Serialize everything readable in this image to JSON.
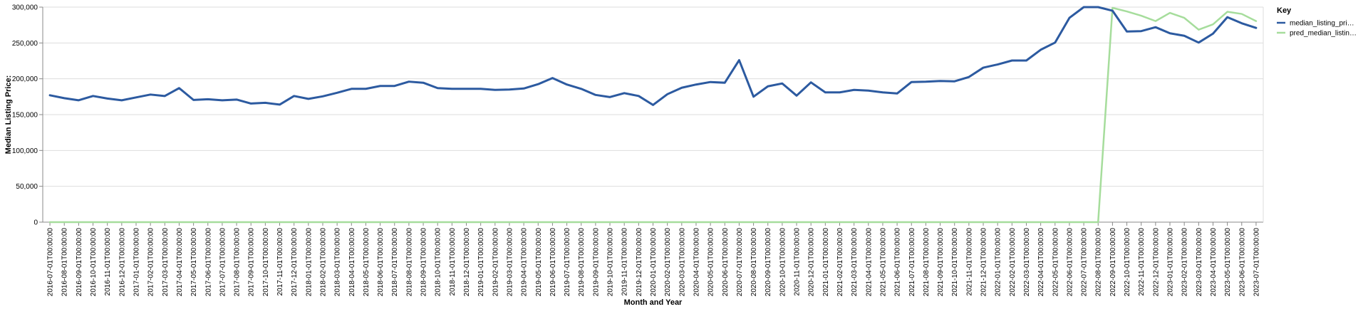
{
  "chart_data": {
    "type": "line",
    "xlabel": "Month and Year",
    "ylabel": "Median Listing Price:",
    "ylim": [
      0,
      300000
    ],
    "yticks": [
      0,
      50000,
      100000,
      150000,
      200000,
      250000,
      300000
    ],
    "ytick_labels": [
      "0",
      "50,000",
      "100,000",
      "150,000",
      "200,000",
      "250,000",
      "300,000"
    ],
    "grid": true,
    "legend": {
      "title": "Key",
      "placement": "right"
    },
    "x": [
      "2016-07-01T00:00:00",
      "2016-08-01T00:00:00",
      "2016-09-01T00:00:00",
      "2016-10-01T00:00:00",
      "2016-11-01T00:00:00",
      "2016-12-01T00:00:00",
      "2017-01-01T00:00:00",
      "2017-02-01T00:00:00",
      "2017-03-01T00:00:00",
      "2017-04-01T00:00:00",
      "2017-05-01T00:00:00",
      "2017-06-01T00:00:00",
      "2017-07-01T00:00:00",
      "2017-08-01T00:00:00",
      "2017-09-01T00:00:00",
      "2017-10-01T00:00:00",
      "2017-11-01T00:00:00",
      "2017-12-01T00:00:00",
      "2018-01-01T00:00:00",
      "2018-02-01T00:00:00",
      "2018-03-01T00:00:00",
      "2018-04-01T00:00:00",
      "2018-05-01T00:00:00",
      "2018-06-01T00:00:00",
      "2018-07-01T00:00:00",
      "2018-08-01T00:00:00",
      "2018-09-01T00:00:00",
      "2018-10-01T00:00:00",
      "2018-11-01T00:00:00",
      "2018-12-01T00:00:00",
      "2019-01-01T00:00:00",
      "2019-02-01T00:00:00",
      "2019-03-01T00:00:00",
      "2019-04-01T00:00:00",
      "2019-05-01T00:00:00",
      "2019-06-01T00:00:00",
      "2019-07-01T00:00:00",
      "2019-08-01T00:00:00",
      "2019-09-01T00:00:00",
      "2019-10-01T00:00:00",
      "2019-11-01T00:00:00",
      "2019-12-01T00:00:00",
      "2020-01-01T00:00:00",
      "2020-02-01T00:00:00",
      "2020-03-01T00:00:00",
      "2020-04-01T00:00:00",
      "2020-05-01T00:00:00",
      "2020-06-01T00:00:00",
      "2020-07-01T00:00:00",
      "2020-08-01T00:00:00",
      "2020-09-01T00:00:00",
      "2020-10-01T00:00:00",
      "2020-11-01T00:00:00",
      "2020-12-01T00:00:00",
      "2021-01-01T00:00:00",
      "2021-02-01T00:00:00",
      "2021-03-01T00:00:00",
      "2021-04-01T00:00:00",
      "2021-05-01T00:00:00",
      "2021-06-01T00:00:00",
      "2021-07-01T00:00:00",
      "2021-08-01T00:00:00",
      "2021-09-01T00:00:00",
      "2021-10-01T00:00:00",
      "2021-11-01T00:00:00",
      "2021-12-01T00:00:00",
      "2022-01-01T00:00:00",
      "2022-02-01T00:00:00",
      "2022-03-01T00:00:00",
      "2022-04-01T00:00:00",
      "2022-05-01T00:00:00",
      "2022-06-01T00:00:00",
      "2022-07-01T00:00:00",
      "2022-08-01T00:00:00",
      "2022-09-01T00:00:00",
      "2022-10-01T00:00:00",
      "2022-11-01T00:00:00",
      "2022-12-01T00:00:00",
      "2023-01-01T00:00:00",
      "2023-02-01T00:00:00",
      "2023-03-01T00:00:00",
      "2023-04-01T00:00:00",
      "2023-05-01T00:00:00",
      "2023-06-01T00:00:00",
      "2023-07-01T00:00:00"
    ],
    "series": [
      {
        "name": "median_listing_pri…",
        "color": "#2c5aa0",
        "values": [
          177000,
          173000,
          170000,
          176000,
          172500,
          170000,
          174000,
          178000,
          176000,
          187000,
          170500,
          171500,
          170000,
          171000,
          165500,
          166500,
          164000,
          176000,
          172000,
          175500,
          180500,
          186000,
          186000,
          190000,
          190000,
          196000,
          194500,
          187000,
          186000,
          186000,
          186000,
          184500,
          185000,
          186500,
          192500,
          201000,
          192000,
          186000,
          177500,
          174500,
          180000,
          176000,
          163500,
          178500,
          187500,
          192000,
          195500,
          194500,
          226000,
          175000,
          189500,
          193500,
          176500,
          195000,
          181000,
          181000,
          184500,
          183500,
          181000,
          179500,
          195500,
          196000,
          197000,
          196500,
          202500,
          215500,
          220000,
          225500,
          225500,
          240500,
          250500,
          285000,
          300000,
          300000,
          295000,
          266000,
          266500,
          272000,
          263500,
          260000,
          250500,
          263000,
          286000,
          277500,
          271000
        ]
      },
      {
        "name": "pred_median_listin…",
        "color": "#a6dd9c",
        "values": [
          0,
          0,
          0,
          0,
          0,
          0,
          0,
          0,
          0,
          0,
          0,
          0,
          0,
          0,
          0,
          0,
          0,
          0,
          0,
          0,
          0,
          0,
          0,
          0,
          0,
          0,
          0,
          0,
          0,
          0,
          0,
          0,
          0,
          0,
          0,
          0,
          0,
          0,
          0,
          0,
          0,
          0,
          0,
          0,
          0,
          0,
          0,
          0,
          0,
          0,
          0,
          0,
          0,
          0,
          0,
          0,
          0,
          0,
          0,
          0,
          0,
          0,
          0,
          0,
          0,
          0,
          0,
          0,
          0,
          0,
          0,
          0,
          0,
          0,
          299000,
          294000,
          288000,
          280500,
          292000,
          285000,
          268500,
          276000,
          293500,
          290500,
          280500
        ]
      }
    ]
  }
}
